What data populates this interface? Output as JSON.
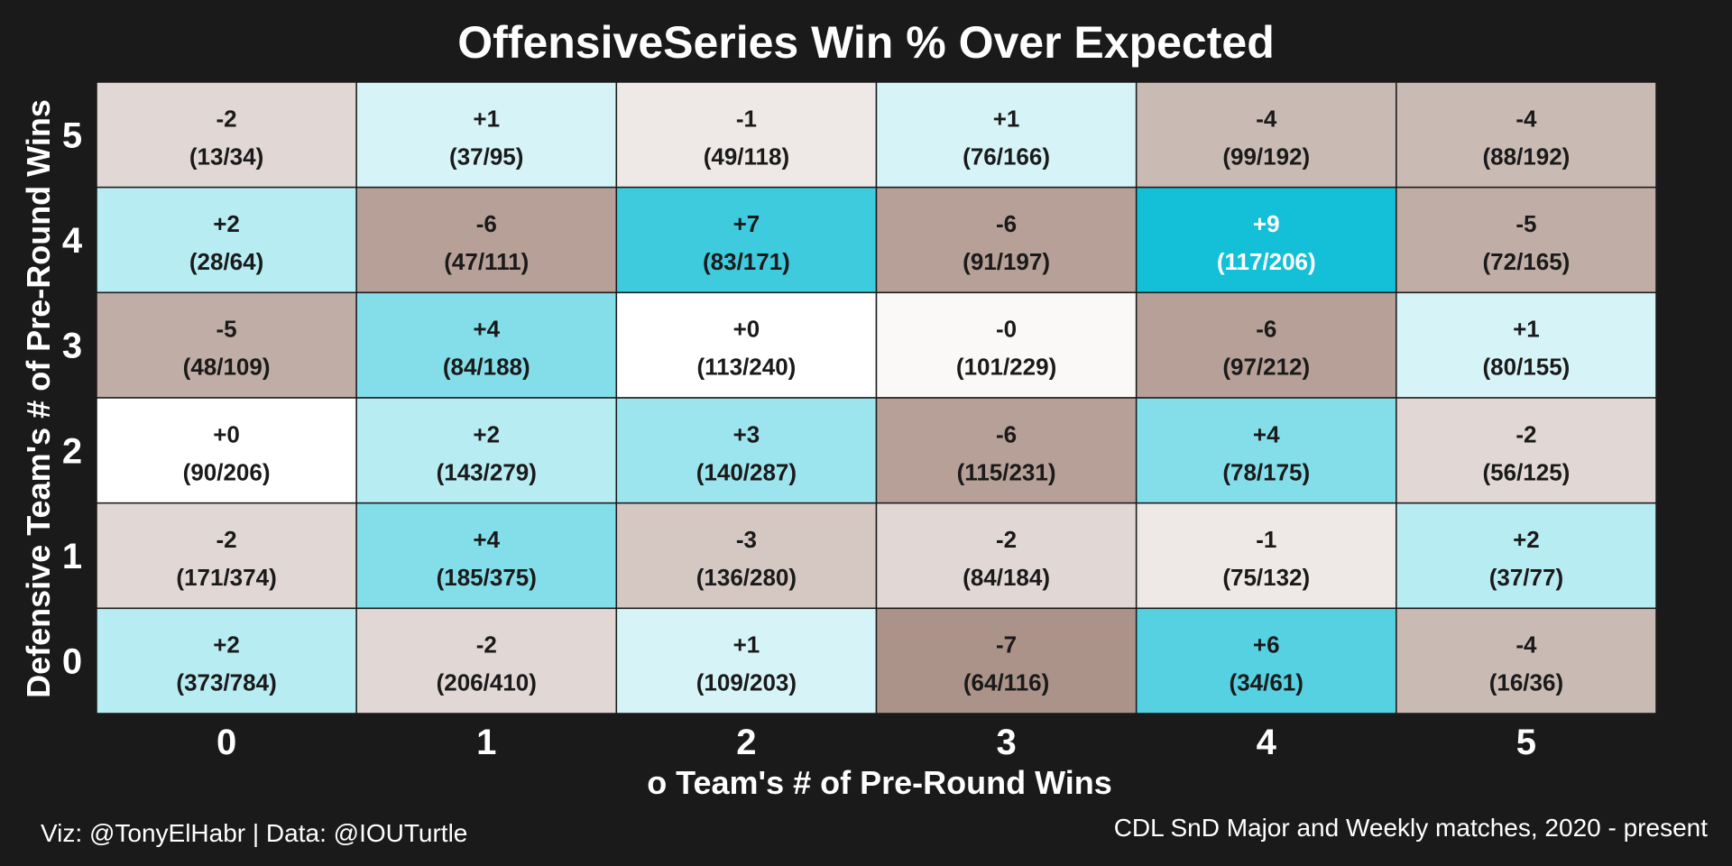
{
  "chart_data": {
    "type": "heatmap",
    "title": "OffensiveSeries Win % Over Expected",
    "xlabel": "o Team's # of Pre-Round Wins",
    "ylabel": "Defensive Team's # of Pre-Round Wins",
    "x_categories": [
      "0",
      "1",
      "2",
      "3",
      "4",
      "5"
    ],
    "y_categories": [
      "0",
      "1",
      "2",
      "3",
      "4",
      "5"
    ],
    "grid": true,
    "color_scale": {
      "negative": "#9a7b6f",
      "neutral": "#ffffff",
      "positive": "#14c0d7",
      "min": -9,
      "max": 9
    },
    "cells": [
      {
        "x": 0,
        "y": 5,
        "value": -2,
        "label": "-2",
        "ratio": "(13/34)"
      },
      {
        "x": 1,
        "y": 5,
        "value": 1,
        "label": "+1",
        "ratio": "(37/95)"
      },
      {
        "x": 2,
        "y": 5,
        "value": -1,
        "label": "-1",
        "ratio": "(49/118)"
      },
      {
        "x": 3,
        "y": 5,
        "value": 1,
        "label": "+1",
        "ratio": "(76/166)"
      },
      {
        "x": 4,
        "y": 5,
        "value": -4,
        "label": "-4",
        "ratio": "(99/192)"
      },
      {
        "x": 5,
        "y": 5,
        "value": -4,
        "label": "-4",
        "ratio": "(88/192)"
      },
      {
        "x": 0,
        "y": 4,
        "value": 2,
        "label": "+2",
        "ratio": "(28/64)"
      },
      {
        "x": 1,
        "y": 4,
        "value": -6,
        "label": "-6",
        "ratio": "(47/111)"
      },
      {
        "x": 2,
        "y": 4,
        "value": 7,
        "label": "+7",
        "ratio": "(83/171)"
      },
      {
        "x": 3,
        "y": 4,
        "value": -6,
        "label": "-6",
        "ratio": "(91/197)"
      },
      {
        "x": 4,
        "y": 4,
        "value": 9,
        "label": "+9",
        "ratio": "(117/206)"
      },
      {
        "x": 5,
        "y": 4,
        "value": -5,
        "label": "-5",
        "ratio": "(72/165)"
      },
      {
        "x": 0,
        "y": 3,
        "value": -5,
        "label": "-5",
        "ratio": "(48/109)"
      },
      {
        "x": 1,
        "y": 3,
        "value": 4,
        "label": "+4",
        "ratio": "(84/188)"
      },
      {
        "x": 2,
        "y": 3,
        "value": 0,
        "label": "+0",
        "ratio": "(113/240)"
      },
      {
        "x": 3,
        "y": 3,
        "value": -0.2,
        "label": "-0",
        "ratio": "(101/229)"
      },
      {
        "x": 4,
        "y": 3,
        "value": -6,
        "label": "-6",
        "ratio": "(97/212)"
      },
      {
        "x": 5,
        "y": 3,
        "value": 1,
        "label": "+1",
        "ratio": "(80/155)"
      },
      {
        "x": 0,
        "y": 2,
        "value": 0,
        "label": "+0",
        "ratio": "(90/206)"
      },
      {
        "x": 1,
        "y": 2,
        "value": 2,
        "label": "+2",
        "ratio": "(143/279)"
      },
      {
        "x": 2,
        "y": 2,
        "value": 3,
        "label": "+3",
        "ratio": "(140/287)"
      },
      {
        "x": 3,
        "y": 2,
        "value": -6,
        "label": "-6",
        "ratio": "(115/231)"
      },
      {
        "x": 4,
        "y": 2,
        "value": 4,
        "label": "+4",
        "ratio": "(78/175)"
      },
      {
        "x": 5,
        "y": 2,
        "value": -2,
        "label": "-2",
        "ratio": "(56/125)"
      },
      {
        "x": 0,
        "y": 1,
        "value": -2,
        "label": "-2",
        "ratio": "(171/374)"
      },
      {
        "x": 1,
        "y": 1,
        "value": 4,
        "label": "+4",
        "ratio": "(185/375)"
      },
      {
        "x": 2,
        "y": 1,
        "value": -3,
        "label": "-3",
        "ratio": "(136/280)"
      },
      {
        "x": 3,
        "y": 1,
        "value": -2,
        "label": "-2",
        "ratio": "(84/184)"
      },
      {
        "x": 4,
        "y": 1,
        "value": -1,
        "label": "-1",
        "ratio": "(75/132)"
      },
      {
        "x": 5,
        "y": 1,
        "value": 2,
        "label": "+2",
        "ratio": "(37/77)"
      },
      {
        "x": 0,
        "y": 0,
        "value": 2,
        "label": "+2",
        "ratio": "(373/784)"
      },
      {
        "x": 1,
        "y": 0,
        "value": -2,
        "label": "-2",
        "ratio": "(206/410)"
      },
      {
        "x": 2,
        "y": 0,
        "value": 1,
        "label": "+1",
        "ratio": "(109/203)"
      },
      {
        "x": 3,
        "y": 0,
        "value": -7,
        "label": "-7",
        "ratio": "(64/116)"
      },
      {
        "x": 4,
        "y": 0,
        "value": 6,
        "label": "+6",
        "ratio": "(34/61)"
      },
      {
        "x": 5,
        "y": 0,
        "value": -4,
        "label": "-4",
        "ratio": "(16/36)"
      }
    ]
  },
  "caption": {
    "left": "Viz: @TonyElHabr | Data: @IOUTurtle",
    "right": "CDL SnD Major and Weekly matches, 2020 - present"
  },
  "colors": {
    "background": "#1a1a1a",
    "text": "#ffffff",
    "cell_text": "#1a1a1a",
    "cell_border": "#1a1a1a"
  }
}
